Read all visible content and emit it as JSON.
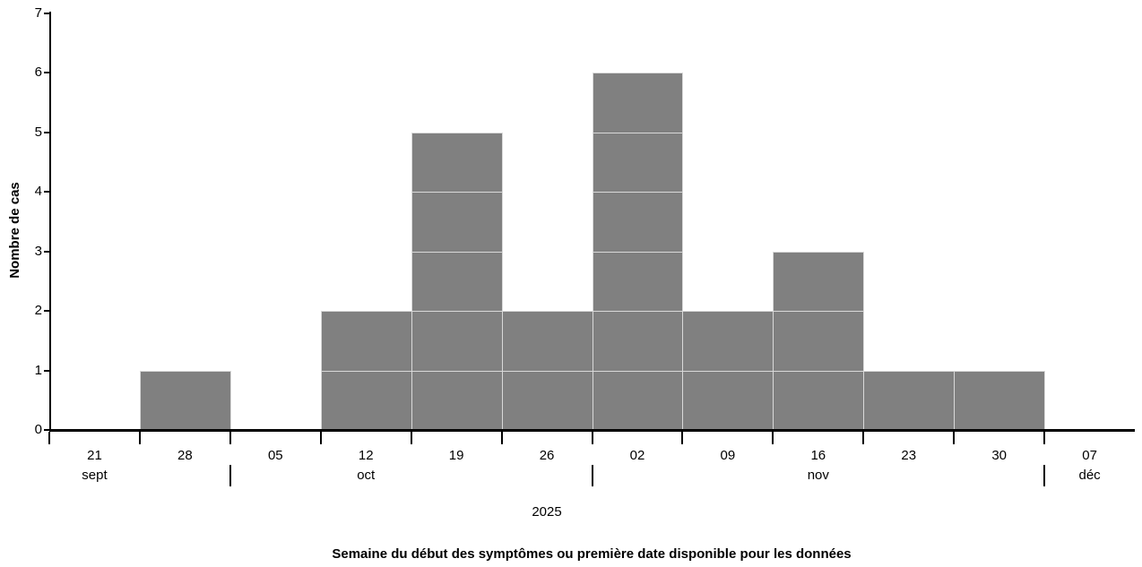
{
  "chart_data": {
    "type": "bar",
    "title": "",
    "ylabel": "Nombre de cas",
    "xlabel": "Semaine du début des symptômes ou première date disponible pour les données",
    "year_label": "2025",
    "categories": [
      "21",
      "28",
      "05",
      "12",
      "19",
      "26",
      "02",
      "09",
      "16",
      "23",
      "30",
      "07"
    ],
    "values": [
      0,
      1,
      0,
      2,
      5,
      2,
      6,
      2,
      3,
      1,
      1,
      0
    ],
    "months": [
      {
        "label": "sept",
        "slot": 0
      },
      {
        "label": "oct",
        "slot": 3
      },
      {
        "label": "nov",
        "slot": 8
      },
      {
        "label": "déc",
        "slot": 11
      }
    ],
    "month_separator_boundaries": [
      2,
      6,
      11
    ],
    "yticks": [
      "0",
      "1",
      "2",
      "3",
      "4",
      "5",
      "6",
      "7"
    ],
    "ylim": [
      0,
      7
    ],
    "grid": false,
    "legend": "none",
    "colors": {
      "bar_fill": "#808080",
      "cell_border": "#d9d9d9",
      "axis": "#000000",
      "text": "#000000",
      "background": "#ffffff"
    }
  }
}
